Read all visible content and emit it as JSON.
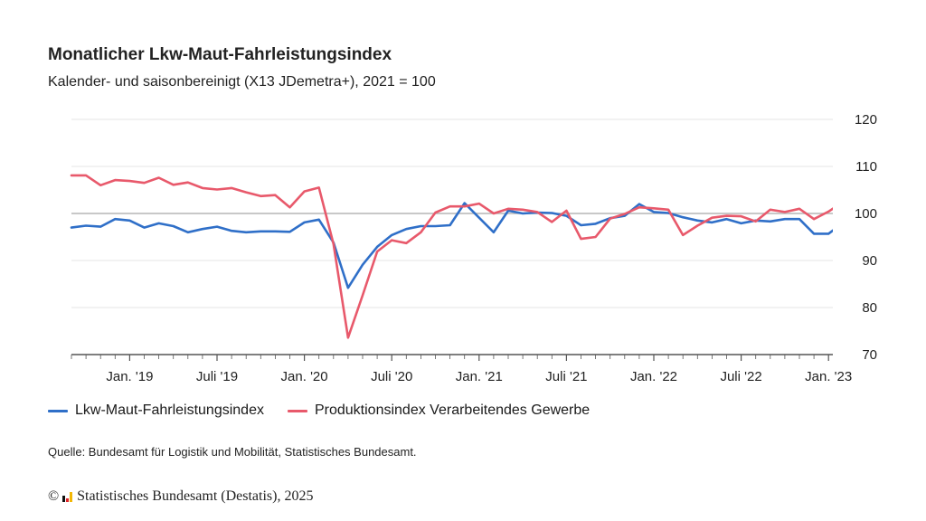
{
  "chart_data": {
    "type": "line",
    "title": "Monatlicher Lkw-Maut-Fahrleistungsindex",
    "subtitle": "Kalender- und saisonbereinigt (X13 JDemetra+), 2021 = 100",
    "xlabel": "",
    "ylabel": "",
    "ylim": [
      70,
      120
    ],
    "yticks": [
      70,
      80,
      90,
      100,
      110,
      120
    ],
    "reference_line": 100,
    "grid": true,
    "x_start": "2018-09",
    "x_ticks": [
      {
        "month_index": 4,
        "label": "Jan. '19"
      },
      {
        "month_index": 10,
        "label": "Juli '19"
      },
      {
        "month_index": 16,
        "label": "Jan. '20"
      },
      {
        "month_index": 22,
        "label": "Juli '20"
      },
      {
        "month_index": 28,
        "label": "Jan. '21"
      },
      {
        "month_index": 34,
        "label": "Juli '21"
      },
      {
        "month_index": 40,
        "label": "Jan. '22"
      },
      {
        "month_index": 46,
        "label": "Juli '22"
      },
      {
        "month_index": 52,
        "label": "Jan. '23"
      }
    ],
    "legend_position": "bottom-left",
    "series": [
      {
        "name": "Lkw-Maut-Fahrleistungsindex",
        "color": "#2f6fc8",
        "values": [
          97.0,
          97.4,
          97.2,
          98.8,
          98.5,
          97.0,
          97.9,
          97.3,
          96.0,
          96.7,
          97.2,
          96.3,
          96.0,
          96.2,
          96.2,
          96.1,
          98.1,
          98.7,
          93.8,
          84.2,
          89.1,
          92.9,
          95.4,
          96.7,
          97.3,
          97.3,
          97.5,
          102.2,
          99.1,
          96.0,
          100.6,
          100.0,
          100.2,
          100.1,
          99.5,
          97.5,
          97.8,
          99.0,
          99.5,
          102.0,
          100.3,
          100.1,
          99.2,
          98.5,
          98.1,
          98.8,
          97.9,
          98.5,
          98.3,
          98.8,
          98.8,
          95.7,
          95.7,
          98.0
        ]
      },
      {
        "name": "Produktionsindex Verarbeitendes Gewerbe",
        "color": "#e8596b",
        "values": [
          108.1,
          108.1,
          106.0,
          107.1,
          106.9,
          106.5,
          107.6,
          106.1,
          106.6,
          105.4,
          105.1,
          105.4,
          104.5,
          103.7,
          103.9,
          101.3,
          104.7,
          105.5,
          93.5,
          73.6,
          82.6,
          91.9,
          94.3,
          93.7,
          96.0,
          100.2,
          101.5,
          101.5,
          102.1,
          100.0,
          101.0,
          100.8,
          100.3,
          98.2,
          100.6,
          94.6,
          95.0,
          98.9,
          99.9,
          101.3,
          101.1,
          100.8,
          95.4,
          97.4,
          99.1,
          99.5,
          99.4,
          98.3,
          100.8,
          100.3,
          101.0,
          98.8,
          100.4,
          102.5
        ]
      }
    ]
  },
  "source": "Quelle: Bundesamt für Logistik und Mobilität, Statistisches Bundesamt.",
  "copyright": {
    "symbol": "©",
    "logo_icon": "destatis-logo-icon",
    "text": "Statistisches Bundesamt (Destatis), 2025"
  }
}
